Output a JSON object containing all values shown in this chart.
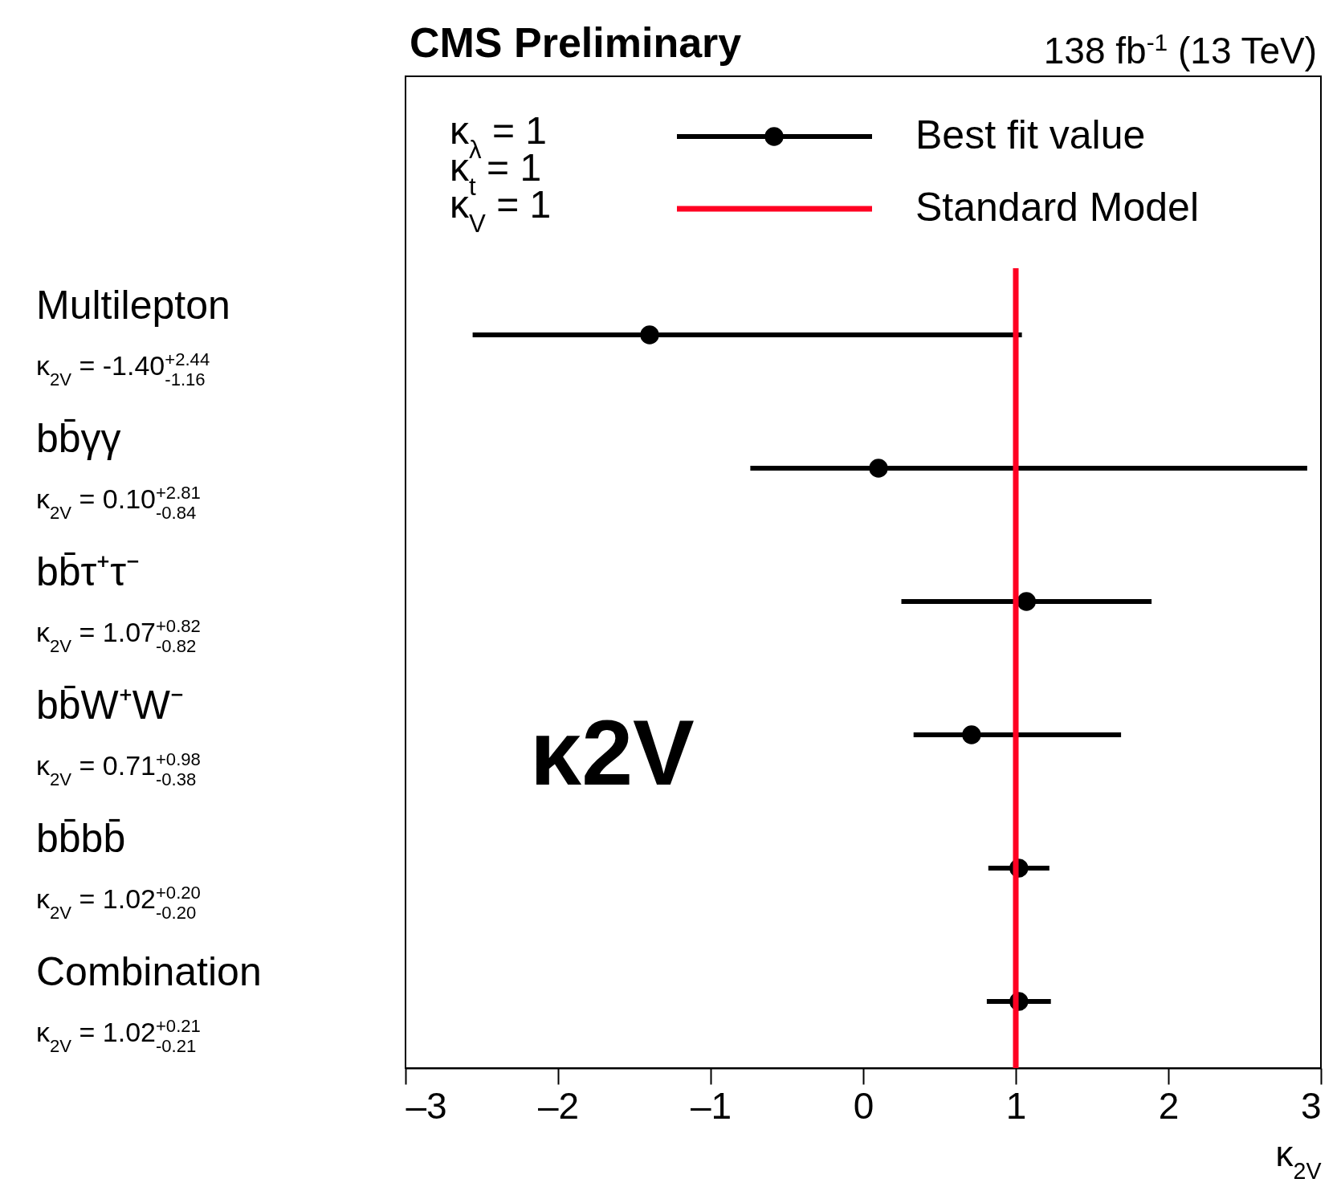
{
  "chart_data": {
    "type": "scatter",
    "orientation": "horizontal",
    "title": "CMS Preliminary",
    "subtitle": "138 fb$^{-1}$ (13 TeV)",
    "xlabel": "κ$_{2V}$",
    "categories": [
      "Multilepton",
      "bb̄γγ",
      "bb̄τ⁺τ⁻",
      "bb̄W⁺W⁻",
      "bb̄bb̄",
      "Combination"
    ],
    "series": [
      {
        "name": "Best fit value",
        "color": "#000000",
        "values": [
          -1.4,
          0.1,
          1.07,
          0.71,
          1.02,
          1.02
        ],
        "errors": [
          [
            -2.56,
            1.04
          ],
          [
            -0.74,
            2.91
          ],
          [
            0.25,
            1.89
          ],
          [
            0.33,
            1.69
          ],
          [
            0.82,
            1.22
          ],
          [
            0.81,
            1.23
          ]
        ],
        "value_labels": [
          "κ$_{2V}$ = -1.40$^{+2.44}$$_{-1.16}$",
          "κ$_{2V}$ = 0.10$^{+2.81}$$_{-0.84}$",
          "κ$_{2V}$ = 1.07$^{+0.82}$$_{-0.82}$",
          "κ$_{2V}$ = 0.71$^{+0.98}$$_{-0.38}$",
          "κ$_{2V}$ = 1.02$^{+0.20}$$_{-0.20}$",
          "κ$_{2V}$ = 1.02$^{+0.21}$$_{-0.21}$"
        ]
      }
    ],
    "xlim": [
      -3,
      3
    ],
    "xticks": [
      {
        "value": -3,
        "label": "–3"
      },
      {
        "value": -2,
        "label": "–2"
      },
      {
        "value": -1,
        "label": "–1"
      },
      0,
      1,
      2,
      3
    ],
    "ref_lines": [
      {
        "axis": "x",
        "value": 1,
        "label": "Standard Model",
        "color": "#ff0022"
      }
    ],
    "marker": "circle",
    "legend": "top right",
    "grid": false,
    "annotations": [
      "κ$_{λ}$ = 1",
      "κ$_{t}$ = 1",
      "κ$_{V}$ = 1",
      "κ2V"
    ]
  }
}
